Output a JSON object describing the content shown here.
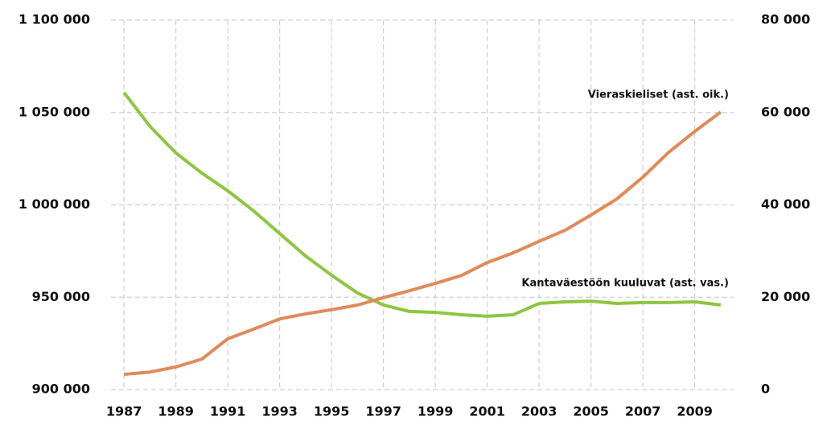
{
  "chart_data": {
    "type": "line",
    "x": [
      1987,
      1988,
      1989,
      1990,
      1991,
      1992,
      1993,
      1994,
      1995,
      1996,
      1997,
      1998,
      1999,
      2000,
      2001,
      2002,
      2003,
      2004,
      2005,
      2006,
      2007,
      2008,
      2009,
      2010
    ],
    "series": [
      {
        "name": "Kantaväestöön kuuluvat (ast. vas.)",
        "color": "#8dc63f",
        "axis": "y",
        "values": [
          1060800,
          1042500,
          1028100,
          1017200,
          1007600,
          996700,
          984500,
          972300,
          961900,
          952300,
          945800,
          942300,
          941800,
          940500,
          939700,
          940500,
          946600,
          947500,
          947900,
          946600,
          947100,
          947100,
          947500,
          945800
        ]
      },
      {
        "name": "Vieraskieliset (ast. oik.)",
        "color": "#e08a5a",
        "axis": "y2",
        "values": [
          3300,
          3800,
          4900,
          6600,
          11000,
          13100,
          15300,
          16400,
          17300,
          18300,
          19900,
          21400,
          23000,
          24700,
          27500,
          29600,
          32100,
          34500,
          37800,
          41300,
          46000,
          51400,
          55900,
          60100
        ]
      }
    ],
    "xlim": [
      1986.5,
      2010.5
    ],
    "xticks": [
      1987,
      1989,
      1991,
      1993,
      1995,
      1997,
      1999,
      2001,
      2003,
      2005,
      2007,
      2009
    ],
    "ylim": [
      900000,
      1100000
    ],
    "yticks": [
      {
        "value": 900000,
        "label": "900 000"
      },
      {
        "value": 950000,
        "label": "950 000"
      },
      {
        "value": 1000000,
        "label": "1 000 000"
      },
      {
        "value": 1050000,
        "label": "1 050 000"
      },
      {
        "value": 1100000,
        "label": "1 100 000"
      }
    ],
    "y2lim": [
      0,
      80000
    ],
    "y2ticks": [
      0,
      {
        "value": 20000,
        "label": "20 000"
      },
      {
        "value": 40000,
        "label": "40 000"
      },
      {
        "value": 60000,
        "label": "60 000"
      },
      {
        "value": 80000,
        "label": "80 000"
      }
    ],
    "grid": true
  }
}
